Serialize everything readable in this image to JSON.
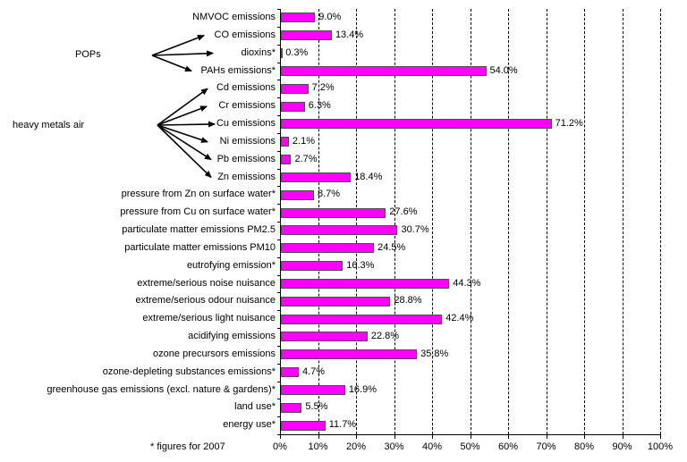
{
  "chart_data": {
    "type": "bar",
    "orientation": "horizontal",
    "title": "",
    "categories": [
      "NMVOC emissions",
      "CO emissions",
      "dioxins*",
      "PAHs emissions*",
      "Cd emissions",
      "Cr emissions",
      "Cu emissions",
      "Ni emissions",
      "Pb emissions",
      "Zn emissions",
      "pressure from Zn on surface water*",
      "pressure from Cu on surface water*",
      "particulate matter emissions PM2.5",
      "particulate matter emissions PM10",
      "eutrofying emission*",
      "extreme/serious noise nuisance",
      "extreme/serious odour nuisance",
      "extreme/serious light nuisance",
      "acidifying emissions",
      "ozone precursors emissions",
      "ozone-depleting substances emissions*",
      "greenhouse gas emissions (excl. nature & gardens)*",
      "land use*",
      "energy use*"
    ],
    "values": [
      9.0,
      13.4,
      0.3,
      54.0,
      7.2,
      6.3,
      71.2,
      2.1,
      2.7,
      18.4,
      8.7,
      27.6,
      30.7,
      24.5,
      16.3,
      44.3,
      28.8,
      42.4,
      22.8,
      35.8,
      4.7,
      16.9,
      5.5,
      11.7
    ],
    "value_labels": [
      "9.0%",
      "13.4%",
      "0.3%",
      "54.0%",
      "7.2%",
      "6.3%",
      "71.2%",
      "2.1%",
      "2.7%",
      "18.4%",
      "8.7%",
      "27.6%",
      "30.7%",
      "24.5%",
      "16.3%",
      "44.3%",
      "28.8%",
      "42.4%",
      "22.8%",
      "35.8%",
      "4.7%",
      "16.9%",
      "5.5%",
      "11.7%"
    ],
    "xlabel": "",
    "ylabel": "",
    "xlim": [
      0,
      100
    ],
    "x_tick_labels": [
      "0%",
      "10%",
      "20%",
      "30%",
      "40%",
      "50%",
      "60%",
      "70%",
      "80%",
      "90%",
      "100%"
    ],
    "grid": "vertical-dashed",
    "legend": "none",
    "footnote": "* figures for 2007",
    "colors": {
      "bar_fill": "#FF00FF",
      "bar_border": "#4D4D4D",
      "grid": "#000000",
      "text": "#000000",
      "background": "#FFFFFF"
    },
    "annotations": [
      {
        "label": "POPs",
        "targets": [
          "CO emissions",
          "dioxins*",
          "PAHs emissions*"
        ]
      },
      {
        "label": "heavy metals air",
        "targets": [
          "Cd emissions",
          "Cr emissions",
          "Cu emissions",
          "Ni emissions",
          "Pb emissions",
          "Zn emissions"
        ]
      }
    ]
  }
}
